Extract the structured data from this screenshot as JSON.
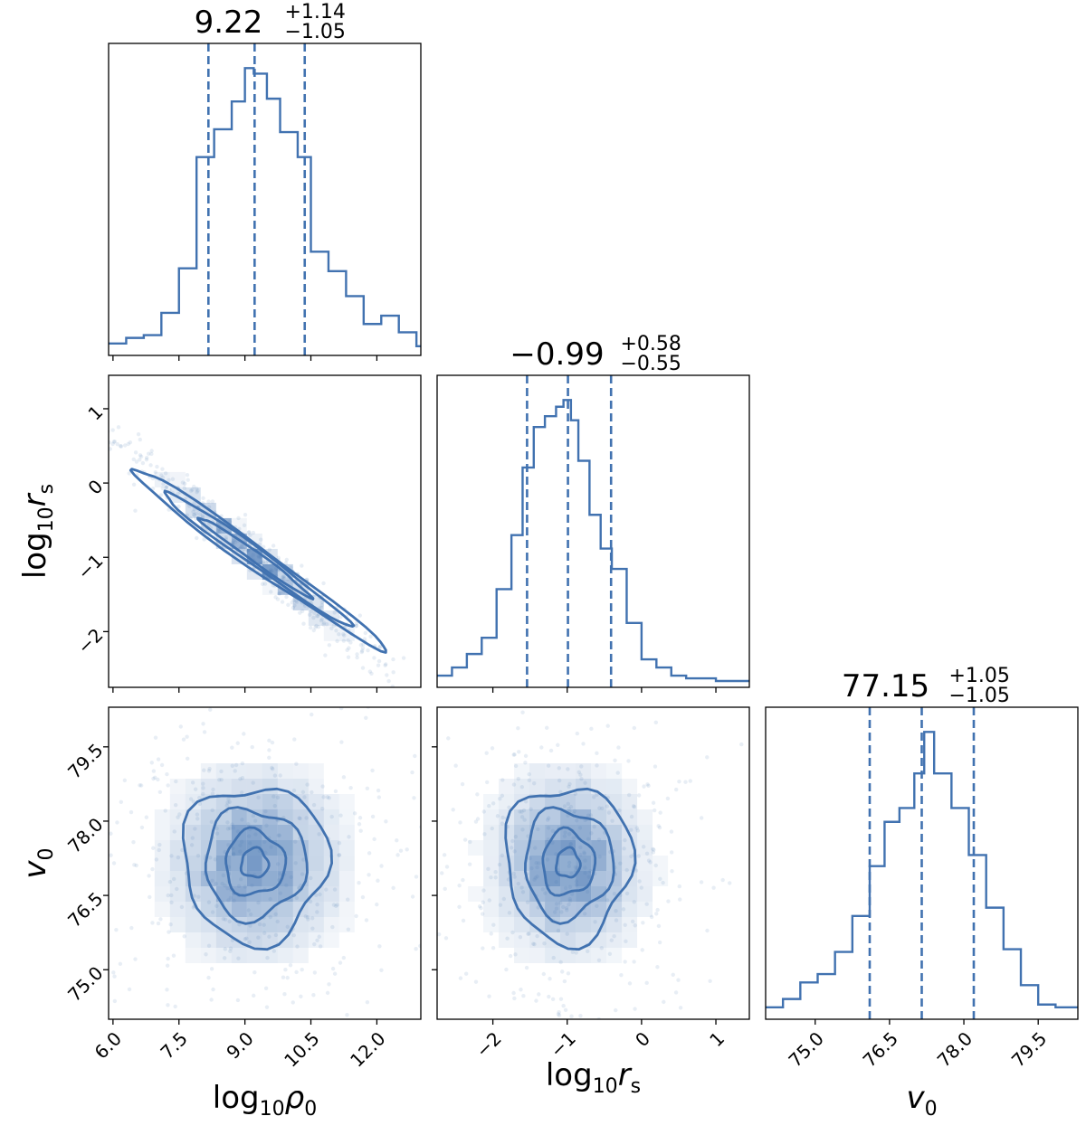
{
  "chart_data": {
    "type": "corner",
    "color": "#4172b0",
    "parameters": [
      {
        "name": "log10_rho0",
        "label": "log",
        "label_sub": "10",
        "label_main": "ρ",
        "label_main_sub": "0"
      },
      {
        "name": "log10_rs",
        "label": "log",
        "label_sub": "10",
        "label_main": "r",
        "label_main_sub": "s"
      },
      {
        "name": "v0",
        "label": "",
        "label_sub": "",
        "label_main": "v",
        "label_main_sub": "0"
      }
    ],
    "titles": [
      {
        "median": "9.22",
        "plus": "+1.14",
        "minus": "−1.05"
      },
      {
        "median": "−0.99",
        "plus": "+0.58",
        "minus": "−0.55"
      },
      {
        "median": "77.15",
        "plus": "+1.05",
        "minus": "−1.05"
      }
    ],
    "ranges": [
      [
        5.9,
        13.0
      ],
      [
        -2.75,
        1.45
      ],
      [
        74.0,
        80.3
      ]
    ],
    "ticks": [
      {
        "values": [
          6.0,
          7.5,
          9.0,
          10.5,
          12.0
        ],
        "labels": [
          "6.0",
          "7.5",
          "9.0",
          "10.5",
          "12.0"
        ]
      },
      {
        "values": [
          -2,
          -1,
          0,
          1
        ],
        "labels": [
          "−2",
          "−1",
          "0",
          "1"
        ]
      },
      {
        "values": [
          75.0,
          76.5,
          78.0,
          79.5
        ],
        "labels": [
          "75.0",
          "76.5",
          "78.0",
          "79.5"
        ]
      }
    ],
    "quantiles": [
      [
        8.17,
        9.22,
        10.36
      ],
      [
        -1.54,
        -0.99,
        -0.41
      ],
      [
        76.1,
        77.15,
        78.2
      ]
    ],
    "histograms": [
      {
        "edges": [
          5.9,
          6.3,
          6.7,
          7.1,
          7.5,
          7.9,
          8.3,
          8.7,
          9.0,
          9.2,
          9.5,
          9.8,
          10.2,
          10.5,
          10.9,
          11.3,
          11.7,
          12.1,
          12.5,
          12.9,
          13.0
        ],
        "counts": [
          6,
          10,
          12,
          28,
          60,
          140,
          160,
          180,
          204,
          200,
          182,
          158,
          140,
          72,
          58,
          40,
          20,
          26,
          14,
          4
        ]
      },
      {
        "edges": [
          -2.75,
          -2.55,
          -2.35,
          -2.15,
          -1.95,
          -1.75,
          -1.6,
          -1.45,
          -1.3,
          -1.15,
          -1.05,
          -0.95,
          -0.85,
          -0.7,
          -0.55,
          -0.4,
          -0.2,
          0.0,
          0.2,
          0.4,
          0.6,
          0.8,
          1.0,
          1.2,
          1.45
        ],
        "counts": [
          6,
          12,
          22,
          34,
          70,
          110,
          160,
          190,
          198,
          205,
          210,
          195,
          165,
          125,
          100,
          85,
          45,
          18,
          12,
          6,
          4,
          4,
          2,
          2
        ]
      },
      {
        "edges": [
          74.0,
          74.35,
          74.7,
          75.05,
          75.4,
          75.75,
          76.1,
          76.4,
          76.7,
          77.0,
          77.2,
          77.4,
          77.75,
          78.1,
          78.45,
          78.8,
          79.15,
          79.5,
          79.85,
          80.3
        ],
        "counts": [
          6,
          12,
          24,
          30,
          46,
          72,
          108,
          140,
          150,
          175,
          205,
          175,
          150,
          116,
          78,
          48,
          22,
          8,
          6
        ]
      }
    ],
    "joint_2d": [
      {
        "x_param": 0,
        "y_param": 1,
        "correlation": -0.98
      },
      {
        "x_param": 0,
        "y_param": 2,
        "correlation": 0.0
      },
      {
        "x_param": 1,
        "y_param": 2,
        "correlation": 0.0
      }
    ]
  }
}
